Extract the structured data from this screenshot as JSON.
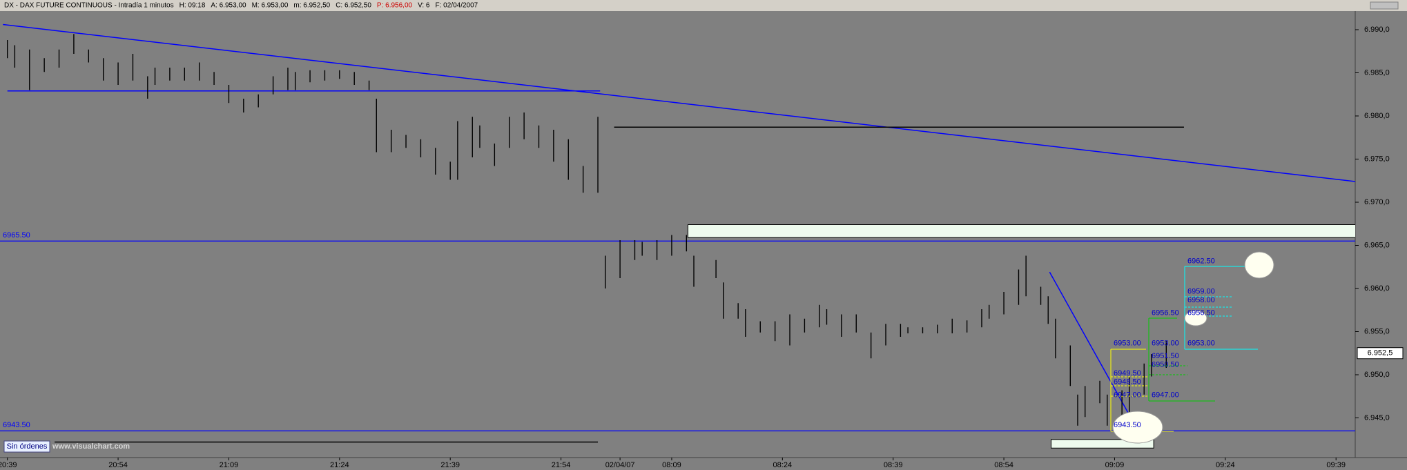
{
  "header": [
    "DX - DAX FUTURE CONTINUOUS - Intradía 1 minutos",
    "H: 09:18",
    "A: 6.953,00",
    "M: 6.953,00",
    "m: 6.952,50",
    "C: 6.952,50",
    "P: 6.956,00",
    "V: 6",
    "F: 02/04/2007"
  ],
  "footer": {
    "button": "Sin órdenes",
    "watermark": "www.visualchart.com"
  },
  "chart_data": {
    "type": "hlbar",
    "color": "#000000",
    "x": [
      0,
      1,
      3,
      5,
      7,
      9,
      11,
      13,
      15,
      17,
      19,
      20,
      22,
      24,
      26,
      28,
      30,
      32,
      34,
      36,
      38,
      39,
      41,
      43,
      45,
      47,
      49,
      50,
      52,
      54,
      56,
      58,
      60,
      61,
      63,
      64,
      66,
      68,
      70,
      72,
      74,
      76,
      78,
      80,
      81,
      83,
      85,
      86,
      88,
      90,
      92,
      93,
      96,
      97,
      99,
      100,
      102,
      104,
      106,
      108,
      110,
      111,
      113,
      115,
      117,
      119,
      121,
      122,
      124,
      126,
      128,
      130,
      132,
      133,
      135,
      137,
      138,
      140,
      141,
      142,
      144,
      145,
      146,
      148,
      149,
      151,
      152,
      154,
      155,
      157
    ],
    "high": [
      6988.8,
      6988.2,
      6987.7,
      6986.7,
      6987.7,
      6989.5,
      6987.7,
      6986.7,
      6986.2,
      6987.2,
      6984.6,
      6985.6,
      6985.6,
      6985.6,
      6986.2,
      6985.1,
      6983.6,
      6982.0,
      6982.5,
      6984.6,
      6985.6,
      6985.1,
      6985.3,
      6985.3,
      6985.3,
      6985.1,
      6984.1,
      6982.0,
      6978.4,
      6977.8,
      6977.3,
      6976.3,
      6974.7,
      6979.4,
      6979.9,
      6978.9,
      6976.8,
      6979.9,
      6980.4,
      6978.9,
      6978.4,
      6977.3,
      6974.2,
      6979.9,
      6963.8,
      6965.6,
      6965.6,
      6965.4,
      6965.6,
      6966.2,
      6966.2,
      6963.8,
      6963.3,
      6960.7,
      6958.3,
      6957.6,
      6956.2,
      6956.2,
      6957.0,
      6956.5,
      6958.1,
      6957.6,
      6957.0,
      6957.0,
      6954.9,
      6955.9,
      6955.9,
      6955.5,
      6955.5,
      6955.8,
      6956.5,
      6956.3,
      6957.6,
      6958.1,
      6959.6,
      6962.2,
      6963.8,
      6960.2,
      6959.1,
      6956.5,
      6953.4,
      6947.7,
      6948.7,
      6949.3,
      6947.7,
      6948.2,
      6949.8,
      6951.3,
      6952.4,
      6953.9
    ],
    "low": [
      6986.7,
      6985.6,
      6983.0,
      6985.1,
      6985.6,
      6987.2,
      6986.2,
      6984.1,
      6983.6,
      6984.1,
      6982.0,
      6983.6,
      6984.1,
      6984.1,
      6984.1,
      6983.6,
      6981.5,
      6980.4,
      6981.0,
      6982.5,
      6983.0,
      6983.0,
      6983.9,
      6984.1,
      6984.3,
      6983.6,
      6983.0,
      6975.8,
      6975.8,
      6976.3,
      6975.2,
      6973.2,
      6972.6,
      6972.6,
      6975.2,
      6976.3,
      6974.2,
      6976.3,
      6977.3,
      6976.3,
      6974.7,
      6972.6,
      6971.1,
      6971.1,
      6960.0,
      6961.2,
      6963.3,
      6963.8,
      6963.3,
      6963.8,
      6964.3,
      6960.2,
      6961.2,
      6956.5,
      6956.5,
      6954.4,
      6954.9,
      6953.9,
      6953.4,
      6954.9,
      6955.5,
      6955.8,
      6954.4,
      6954.9,
      6951.9,
      6953.4,
      6954.4,
      6954.8,
      6954.8,
      6954.8,
      6954.8,
      6954.9,
      6955.5,
      6956.5,
      6957.0,
      6958.1,
      6959.1,
      6958.1,
      6955.9,
      6951.9,
      6948.7,
      6944.1,
      6945.1,
      6946.7,
      6944.1,
      6943.5,
      6945.6,
      6947.7,
      6949.8,
      6950.8
    ],
    "xlim": [
      -1,
      182.6
    ],
    "ylim": [
      6940.4,
      6992.0
    ],
    "xticks": [
      {
        "value": 0,
        "label": "20:39"
      },
      {
        "value": 15,
        "label": "20:54"
      },
      {
        "value": 30,
        "label": "21:09"
      },
      {
        "value": 45,
        "label": "21:24"
      },
      {
        "value": 60,
        "label": "21:39"
      },
      {
        "value": 75,
        "label": "21:54"
      },
      {
        "value": 83,
        "label": "02/04/07"
      },
      {
        "value": 90,
        "label": "08:09"
      },
      {
        "value": 105,
        "label": "08:24"
      },
      {
        "value": 120,
        "label": "08:39"
      },
      {
        "value": 135,
        "label": "08:54"
      },
      {
        "value": 150,
        "label": "09:09"
      },
      {
        "value": 165,
        "label": "09:24"
      },
      {
        "value": 180,
        "label": "09:39"
      }
    ],
    "yticks": [
      {
        "value": 6945,
        "label": "6.945,0"
      },
      {
        "value": 6950,
        "label": "6.950,0"
      },
      {
        "value": 6955,
        "label": "6.955,0"
      },
      {
        "value": 6960,
        "label": "6.960,0"
      },
      {
        "value": 6965,
        "label": "6.965,0"
      },
      {
        "value": 6970,
        "label": "6.970,0"
      },
      {
        "value": 6975,
        "label": "6.975,0"
      },
      {
        "value": 6980,
        "label": "6.980,0"
      },
      {
        "value": 6985,
        "label": "6.985,0"
      },
      {
        "value": 6990,
        "label": "6.990,0"
      }
    ],
    "last_price": {
      "value": 6952.5,
      "label": "6.952,5"
    },
    "levels": [
      {
        "value": 6965.5,
        "label": "6965.50",
        "color": "#0000ff"
      },
      {
        "value": 6943.5,
        "label": "6943.50",
        "color": "#0000ff"
      }
    ],
    "drawings": [
      {
        "type": "line",
        "color": "#0000ff",
        "points": [
          [
            -0.6,
            6990.6
          ],
          [
            183.6,
            6972.3
          ]
        ]
      },
      {
        "type": "line",
        "color": "#0000ff",
        "points": [
          [
            0,
            6982.9
          ],
          [
            80.3,
            6982.9
          ]
        ]
      },
      {
        "type": "line",
        "color": "#000000",
        "points": [
          [
            82.2,
            6978.7
          ],
          [
            159.4,
            6978.7
          ]
        ]
      },
      {
        "type": "line",
        "color": "#000000",
        "points": [
          [
            6.4,
            6942.2
          ],
          [
            80,
            6942.2
          ]
        ]
      },
      {
        "type": "line",
        "color": "#0000ff",
        "points": [
          [
            141.2,
            6961.9
          ],
          [
            154.5,
            6941.5
          ]
        ]
      },
      {
        "type": "rect",
        "color": "#eefbee",
        "points": [
          [
            92.2,
            6967.4
          ],
          [
            183.4,
            6965.9
          ]
        ]
      },
      {
        "type": "rect",
        "color": "#eefbee",
        "points": [
          [
            141.4,
            6942.5
          ],
          [
            155.3,
            6941.5
          ]
        ]
      }
    ],
    "order_columns": [
      [
        {
          "value": 6953,
          "label": "6953.00"
        },
        {
          "value": 6949.5,
          "label": "6949.50"
        },
        {
          "value": 6948.5,
          "label": "6948.50"
        },
        {
          "value": 6947,
          "label": "6947.00"
        },
        {
          "value": 6943.5,
          "label": "6943.50"
        }
      ],
      [
        {
          "value": 6956.5,
          "label": "6956.50"
        },
        {
          "value": 6953,
          "label": "6953.00"
        },
        {
          "value": 6951.5,
          "label": "6951.50"
        },
        {
          "value": 6950.5,
          "label": "6950.50"
        },
        {
          "value": 6947,
          "label": "6947.00"
        }
      ],
      [
        {
          "value": 6962.5,
          "label": "6962.50"
        },
        {
          "value": 6959,
          "label": "6959.00"
        },
        {
          "value": 6958,
          "label": "6958.00"
        },
        {
          "value": 6956.5,
          "label": "6956.50"
        },
        {
          "value": 6953,
          "label": "6953.00"
        }
      ]
    ]
  }
}
